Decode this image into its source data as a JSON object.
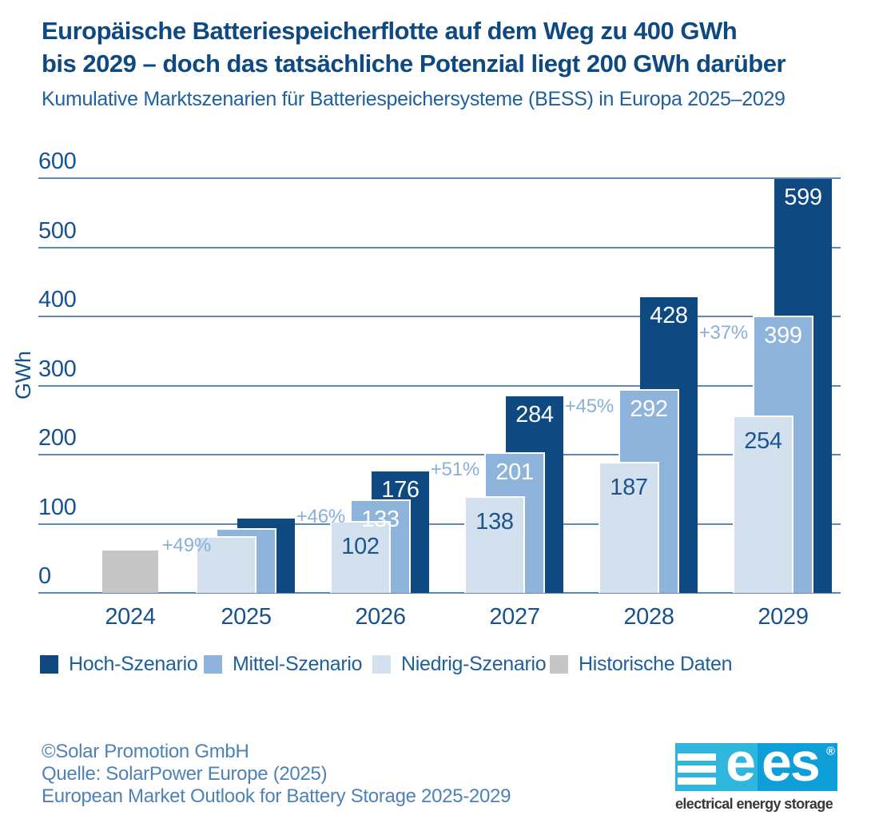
{
  "header": {
    "title_line1": "Europäische Batteriespeicherflotte auf dem Weg zu 400 GWh",
    "title_line2": "bis 2029 – doch das tatsächliche Potenzial liegt 200 GWh darüber",
    "subtitle": "Kumulative Marktszenarien für Batteriespeichersysteme (BESS) in Europa 2025–2029"
  },
  "chart_data": {
    "type": "bar",
    "title": "Europäische Batteriespeicherflotte auf dem Weg zu 400 GWh bis 2029 – doch das tatsächliche Potenzial liegt 200 GWh darüber",
    "subtitle": "Kumulative Marktszenarien für Batteriespeichersysteme (BESS) in Europa 2025–2029",
    "xlabel": "",
    "ylabel": "GWh",
    "ylim": [
      0,
      600
    ],
    "yticks": [
      0,
      100,
      200,
      300,
      400,
      500,
      600
    ],
    "grid": "horizontal",
    "legend_position": "bottom",
    "categories": [
      "2024",
      "2025",
      "2026",
      "2027",
      "2028",
      "2029"
    ],
    "series": [
      {
        "name": "Hoch-Szenario",
        "color": "#0e4a81",
        "values": [
          null,
          108,
          176,
          284,
          428,
          599
        ],
        "labels": [
          null,
          null,
          "176",
          "284",
          "428",
          "599"
        ]
      },
      {
        "name": "Mittel-Szenario",
        "color": "#8fb4dc",
        "values": [
          null,
          91,
          133,
          201,
          292,
          399
        ],
        "labels": [
          null,
          null,
          "133",
          "201",
          "292",
          "399"
        ]
      },
      {
        "name": "Niedrig-Szenario",
        "color": "#d3e0ee",
        "values": [
          null,
          80,
          102,
          138,
          187,
          254
        ],
        "labels": [
          null,
          null,
          "102",
          "138",
          "187",
          "254"
        ]
      },
      {
        "name": "Historische Daten",
        "color": "#c6c6c6",
        "values": [
          61,
          null,
          null,
          null,
          null,
          null
        ],
        "labels": [
          null,
          null,
          null,
          null,
          null,
          null
        ]
      }
    ],
    "growth_annotations": [
      null,
      "+49%",
      "+46%",
      "+51%",
      "+45%",
      "+37%"
    ]
  },
  "legend": {
    "items": [
      {
        "label": "Hoch-Szenario",
        "color": "#0e4a81"
      },
      {
        "label": "Mittel-Szenario",
        "color": "#8fb4dc"
      },
      {
        "label": "Niedrig-Szenario",
        "color": "#d3e0ee"
      },
      {
        "label": "Historische Daten",
        "color": "#c6c6c6"
      }
    ]
  },
  "footer": {
    "line1": "©Solar Promotion GmbH",
    "line2": "Quelle: SolarPower Europe (2025)",
    "line3": "European Market Outlook for Battery Storage 2025-2029"
  },
  "logo": {
    "e1": "e",
    "e2": "es",
    "reg": "®",
    "caption": "electrical energy storage"
  }
}
